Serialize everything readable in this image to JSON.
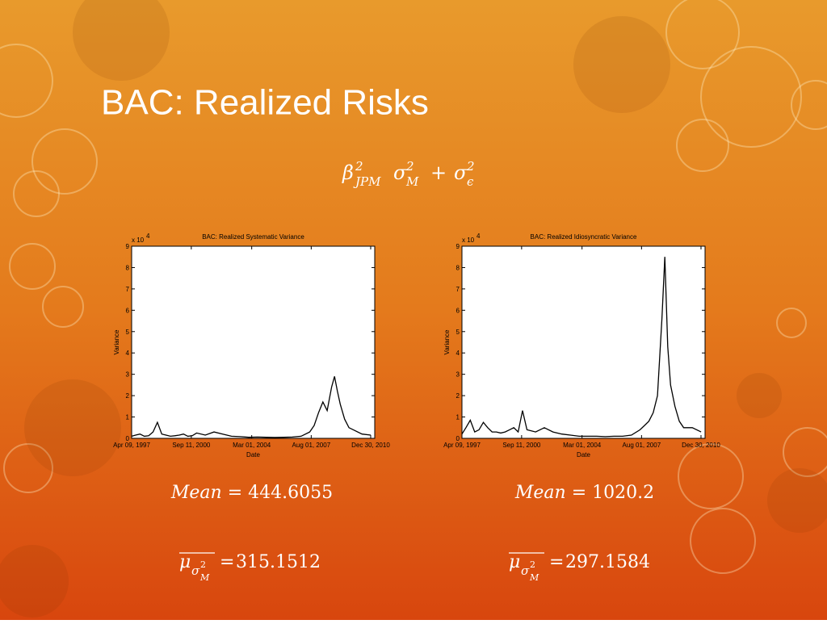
{
  "slide": {
    "title": "BAC: Realized Risks",
    "formula": {
      "beta": "β",
      "beta_sup": "2",
      "beta_sub": "JPM",
      "sigma_m": "σ",
      "sigma_m_sup": "2",
      "sigma_m_sub": "M",
      "plus": "+",
      "sigma_e": "σ",
      "sigma_e_sup": "2",
      "sigma_e_sub": "ϵ"
    },
    "stats": [
      {
        "mean_label": "Mean",
        "equals": "=",
        "mean_value": 444.6055,
        "mu": "μ",
        "mu_sub": "σ",
        "mu_sub_sup": "2",
        "mu_sub_sub": "M",
        "mu_equals": "=",
        "mu_value": 315.1512
      },
      {
        "mean_label": "Mean",
        "equals": "=",
        "mean_value": 1020.2,
        "mu": "μ",
        "mu_sub": "σ",
        "mu_sub_sup": "2",
        "mu_sub_sub": "M",
        "mu_equals": "=",
        "mu_value": 297.1584
      }
    ]
  },
  "chart_data": [
    {
      "type": "line",
      "title": "BAC: Realized Systematic Variance",
      "x_label": "Date",
      "y_label": "Variance",
      "y_scale_label": "x 10",
      "y_scale_exponent": "4",
      "color": "#000000",
      "xlim": [
        "1997-04-09",
        "2011-03-25"
      ],
      "xticks": [
        {
          "value": "1997-04-09",
          "label": "Apr 09, 1997"
        },
        {
          "value": "2000-09-11",
          "label": "Sep 11, 2000"
        },
        {
          "value": "2004-03-01",
          "label": "Mar 01, 2004"
        },
        {
          "value": "2007-08-01",
          "label": "Aug 01, 2007"
        },
        {
          "value": "2010-12-30",
          "label": "Dec 30, 2010"
        }
      ],
      "ylim": [
        0,
        9
      ],
      "yticks": [
        0,
        1,
        2,
        3,
        4,
        5,
        6,
        7,
        8,
        9
      ],
      "x": [
        "1997-04-09",
        "1997-07-01",
        "1997-10-01",
        "1998-01-01",
        "1998-04-01",
        "1998-07-01",
        "1998-10-01",
        "1999-01-01",
        "1999-04-01",
        "1999-07-01",
        "1999-10-01",
        "2000-01-01",
        "2000-04-01",
        "2000-07-01",
        "2000-10-01",
        "2001-01-01",
        "2001-07-01",
        "2002-01-01",
        "2002-07-01",
        "2003-01-01",
        "2003-07-01",
        "2004-01-01",
        "2004-07-01",
        "2005-01-01",
        "2005-07-01",
        "2006-01-01",
        "2006-07-01",
        "2007-01-01",
        "2007-07-01",
        "2007-10-01",
        "2008-01-01",
        "2008-04-01",
        "2008-07-01",
        "2008-10-01",
        "2008-12-01",
        "2009-02-01",
        "2009-04-01",
        "2009-07-01",
        "2009-10-01",
        "2010-01-01",
        "2010-07-01",
        "2011-01-01"
      ],
      "values": [
        0.1,
        0.15,
        0.2,
        0.1,
        0.12,
        0.3,
        0.75,
        0.2,
        0.15,
        0.1,
        0.12,
        0.15,
        0.2,
        0.1,
        0.12,
        0.25,
        0.15,
        0.3,
        0.2,
        0.1,
        0.08,
        0.05,
        0.06,
        0.05,
        0.04,
        0.05,
        0.06,
        0.1,
        0.3,
        0.6,
        1.2,
        1.7,
        1.3,
        2.4,
        2.9,
        2.2,
        1.6,
        0.9,
        0.5,
        0.4,
        0.2,
        0.15
      ]
    },
    {
      "type": "line",
      "title": "BAC: Realized Idiosyncratic Variance",
      "x_label": "Date",
      "y_label": "Variance",
      "y_scale_label": "x 10",
      "y_scale_exponent": "4",
      "color": "#000000",
      "xlim": [
        "1997-04-09",
        "2011-03-25"
      ],
      "xticks": [
        {
          "value": "1997-04-09",
          "label": "Apr 09, 1997"
        },
        {
          "value": "2000-09-11",
          "label": "Sep 11, 2000"
        },
        {
          "value": "2004-03-01",
          "label": "Mar 01, 2004"
        },
        {
          "value": "2007-08-01",
          "label": "Aug 01, 2007"
        },
        {
          "value": "2010-12-30",
          "label": "Dec 30, 2010"
        }
      ],
      "ylim": [
        0,
        9
      ],
      "yticks": [
        0,
        1,
        2,
        3,
        4,
        5,
        6,
        7,
        8,
        9
      ],
      "x": [
        "1997-04-09",
        "1997-07-01",
        "1997-10-01",
        "1998-01-01",
        "1998-04-01",
        "1998-07-01",
        "1998-10-01",
        "1999-01-01",
        "1999-04-01",
        "1999-07-01",
        "1999-10-01",
        "2000-01-01",
        "2000-04-01",
        "2000-07-01",
        "2000-10-01",
        "2001-01-01",
        "2001-07-01",
        "2002-01-01",
        "2002-07-01",
        "2003-01-01",
        "2003-07-01",
        "2004-01-01",
        "2004-07-01",
        "2005-01-01",
        "2005-07-01",
        "2006-01-01",
        "2006-07-01",
        "2007-01-01",
        "2007-07-01",
        "2007-10-01",
        "2008-01-01",
        "2008-04-01",
        "2008-07-01",
        "2008-10-01",
        "2008-12-01",
        "2009-02-01",
        "2009-04-01",
        "2009-07-01",
        "2009-10-01",
        "2010-01-01",
        "2010-07-01",
        "2011-01-01"
      ],
      "values": [
        0.2,
        0.5,
        0.85,
        0.3,
        0.4,
        0.75,
        0.5,
        0.3,
        0.3,
        0.25,
        0.3,
        0.4,
        0.5,
        0.3,
        1.3,
        0.4,
        0.3,
        0.5,
        0.3,
        0.2,
        0.15,
        0.1,
        0.1,
        0.1,
        0.08,
        0.1,
        0.1,
        0.15,
        0.4,
        0.6,
        0.8,
        1.2,
        2.0,
        5.6,
        8.5,
        4.3,
        2.5,
        1.5,
        0.8,
        0.5,
        0.5,
        0.3
      ]
    }
  ]
}
